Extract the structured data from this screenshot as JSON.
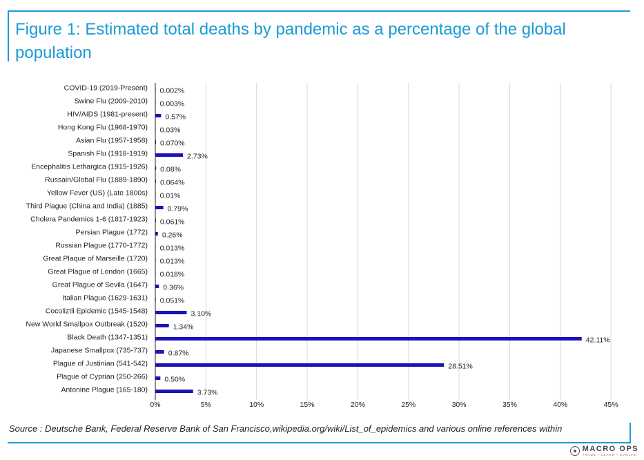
{
  "title": "Figure 1: Estimated total deaths by pandemic as a percentage of the global population",
  "source": "Source : Deutsche Bank, Federal Reserve Bank of San Francisco,wikipedia.org/wiki/List_of_epidemics and various online references within",
  "logo": {
    "name": "MACRO OPS",
    "tagline": "TRADE • LEARN • EVOLVE"
  },
  "chart_data": {
    "type": "bar",
    "orientation": "horizontal",
    "bar_color": "#1a12b8",
    "axis": {
      "min": 0,
      "max": 45,
      "step": 5,
      "tick_suffix": "%"
    },
    "grid": true,
    "categories": [
      "COVID-19 (2019-Present)",
      "Swine Flu (2009-2010)",
      "HIV/AIDS (1981-present)",
      "Hong Kong Flu (1968-1970)",
      "Asian Flu (1957-1958)",
      "Spanish Flu (1918-1919)",
      "Encephalitis Lethargica  (1915-1926)",
      "Russain/Global Flu  (1889-1890)",
      "Yellow Fever (US) (Late 1800s)",
      "Third Plague (China and India) (1885)",
      "Cholera Pandemics 1-6 (1817-1923)",
      "Persian Plague (1772)",
      "Russian Plague (1770-1772)",
      "Great Plaque of Marseille (1720)",
      "Great Plague of London (1665)",
      "Great Plague of Sevila (1647)",
      "Italian Plague (1629-1631)",
      "Cocoliztli Epidemic (1545-1548)",
      "New World Smallpox Outbreak (1520)",
      "Black Death (1347-1351)",
      "Japanese Smallpox (735-737)",
      "Plague of Justinian (541-542)",
      "Plague of Cyprian (250-266)",
      "Antonine Plague (165-180)"
    ],
    "values": [
      0.002,
      0.003,
      0.57,
      0.03,
      0.07,
      2.73,
      0.08,
      0.064,
      0.01,
      0.79,
      0.061,
      0.26,
      0.013,
      0.013,
      0.018,
      0.36,
      0.051,
      3.1,
      1.34,
      42.11,
      0.87,
      28.51,
      0.5,
      3.73
    ],
    "value_labels": [
      "0.002%",
      "0.003%",
      "0.57%",
      "0.03%",
      "0.070%",
      "2.73%",
      "0.08%",
      "0.064%",
      "0.01%",
      "0.79%",
      "0.061%",
      "0.26%",
      "0.013%",
      "0.013%",
      "0.018%",
      "0.36%",
      "0.051%",
      "3.10%",
      "1.34%",
      "42.11%",
      "0.87%",
      "28.51%",
      "0.50%",
      "3.73%"
    ]
  }
}
